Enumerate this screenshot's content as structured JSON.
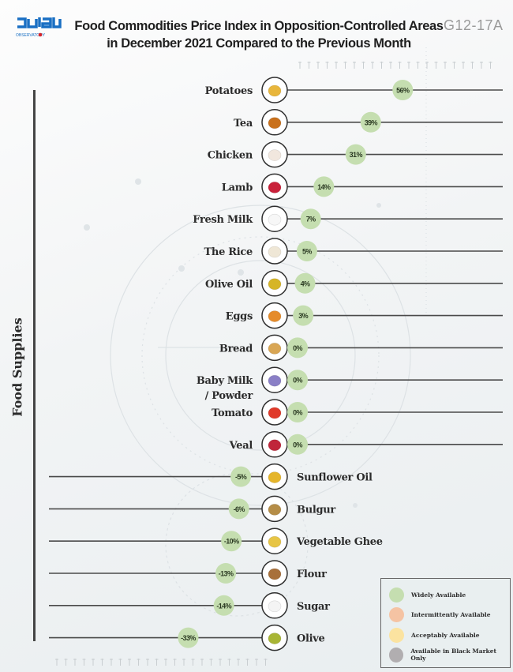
{
  "header": {
    "logo_text": "مرصد",
    "logo_subtext": "OBSERVATORY",
    "title_line1": "Food  Commodities Price Index in Opposition-Controlled Areas",
    "title_line2": "in December 2021 Compared to the Previous Month",
    "code": "G12-17A"
  },
  "colors": {
    "widely_available": "#c5deb0",
    "intermittently_available": "#f5c3a3",
    "acceptably_available": "#fbe3a0",
    "black_market_only": "#b1aeb0",
    "line": "#4a4a4a",
    "circle_border": "#2f2f2f"
  },
  "legend": {
    "items": [
      {
        "label": "Widely Available",
        "color": "#c5deb0"
      },
      {
        "label": "Intermittently Available",
        "color": "#f5c3a3"
      },
      {
        "label": "Acceptably Available",
        "color": "#fbe3a0"
      },
      {
        "label": "Available in Black Market Only",
        "color": "#b1aeb0"
      }
    ]
  },
  "chart_data": {
    "type": "bar",
    "title": "Food  Commodities Price Index in Opposition-Controlled Areas in December 2021 Compared to the Previous Month",
    "xlabel": "",
    "ylabel": "Food Supplies",
    "unit": "%",
    "categories": [
      "Potatoes",
      "Tea",
      "Chicken",
      "Lamb",
      "Fresh Milk",
      "The Rice",
      "Olive Oil",
      "Eggs",
      "Bread",
      "Baby Milk / Powder",
      "Tomato",
      "Veal",
      "Sunflower Oil",
      "Bulgur",
      "Vegetable Ghee",
      "Flour",
      "Sugar",
      "Olive"
    ],
    "values": [
      56,
      39,
      31,
      14,
      7,
      5,
      4,
      3,
      0,
      0,
      0,
      0,
      -5,
      -6,
      -10,
      -13,
      -14,
      -33
    ],
    "value_labels": [
      "56%",
      "39%",
      "31%",
      "14%",
      "7%",
      "5%",
      "4%",
      "3%",
      "0%",
      "0%",
      "0%",
      "0%",
      "-5%",
      "-6%",
      "-10%",
      "-13%",
      "-14%",
      "-33%"
    ],
    "availability": [
      "widely_available",
      "widely_available",
      "widely_available",
      "widely_available",
      "widely_available",
      "widely_available",
      "widely_available",
      "widely_available",
      "widely_available",
      "widely_available",
      "widely_available",
      "widely_available",
      "widely_available",
      "widely_available",
      "widely_available",
      "widely_available",
      "widely_available",
      "widely_available"
    ],
    "icons": [
      "potato-icon",
      "tea-icon",
      "chicken-icon",
      "lamb-meat-icon",
      "milk-jug-icon",
      "rice-icon",
      "olive-oil-bottle-icon",
      "eggs-icon",
      "bread-icon",
      "baby-milk-can-icon",
      "tomato-icon",
      "veal-meat-icon",
      "sunflower-oil-icon",
      "bulgur-icon",
      "ghee-can-icon",
      "flour-sack-icon",
      "sugar-icon",
      "olives-icon"
    ],
    "legend_position": "bottom-right",
    "grid": false
  }
}
